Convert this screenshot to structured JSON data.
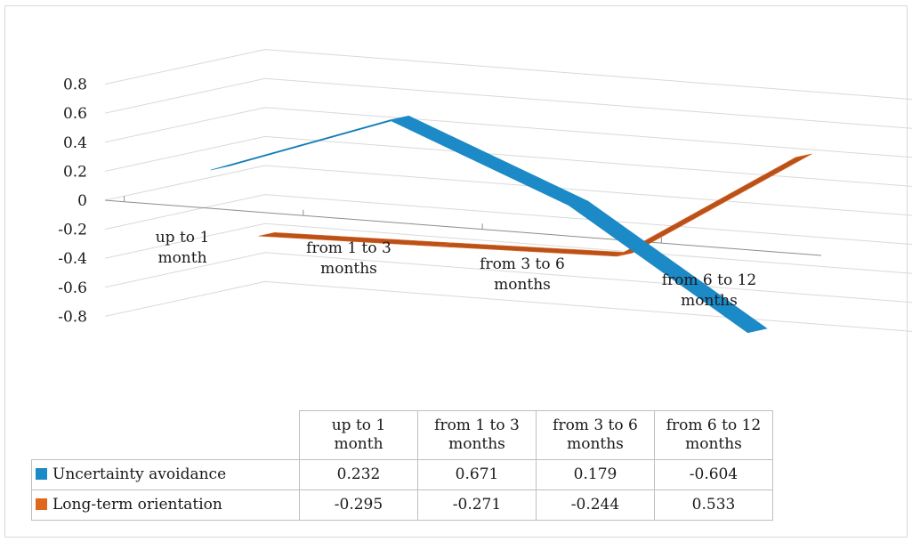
{
  "colors": {
    "series": [
      "#1b8ac7",
      "#e0661e"
    ],
    "series_dark": [
      "#146e9f",
      "#b9521a"
    ],
    "grid": "#d9d9d9",
    "axis": "#8c8c8c",
    "border": "#d9d9d9"
  },
  "chart_data": {
    "type": "line",
    "subtype": "3d-line",
    "categories": [
      "up to 1 month",
      "from 1 to 3 months",
      "from 3 to 6 months",
      "from 6 to 12 months"
    ],
    "category_label_lines": [
      [
        "up to 1",
        "month"
      ],
      [
        "from 1 to 3",
        "months"
      ],
      [
        "from 3 to 6",
        "months"
      ],
      [
        "from 6 to 12",
        "months"
      ]
    ],
    "series": [
      {
        "name": "Uncertainty avoidance",
        "values": [
          0.232,
          0.671,
          0.179,
          -0.604
        ]
      },
      {
        "name": "Long-term orientation",
        "values": [
          -0.295,
          -0.271,
          -0.244,
          0.533
        ]
      }
    ],
    "y_ticks": [
      "0.8",
      "0.6",
      "0.4",
      "0.2",
      "0",
      "-0.2",
      "-0.4",
      "-0.6",
      "-0.8"
    ],
    "ylim": [
      -0.8,
      0.8
    ],
    "grid": true,
    "legend_placement": "data-table",
    "data_table": {
      "rows": [
        {
          "label": "Uncertainty avoidance",
          "values": [
            "0.232",
            "0.671",
            "0.179",
            "-0.604"
          ]
        },
        {
          "label": "Long-term orientation",
          "values": [
            "-0.295",
            "-0.271",
            "-0.244",
            "0.533"
          ]
        }
      ]
    }
  }
}
